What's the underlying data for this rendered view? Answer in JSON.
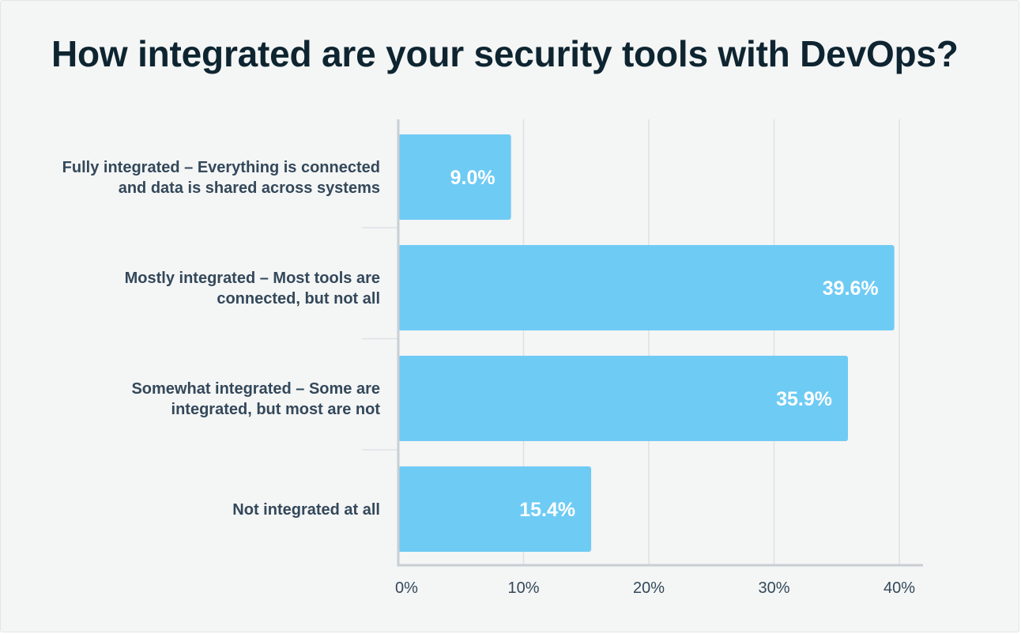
{
  "chart_data": {
    "type": "bar",
    "orientation": "horizontal",
    "title": "How integrated are your security tools with DevOps?",
    "categories": [
      [
        "Fully integrated – Everything is connected",
        "and data is shared across systems"
      ],
      [
        "Mostly integrated – Most tools are",
        "connected, but not all"
      ],
      [
        "Somewhat integrated – Some are",
        "integrated, but most are not"
      ],
      [
        "Not integrated at all"
      ]
    ],
    "values": [
      9.0,
      39.6,
      35.9,
      15.4
    ],
    "value_labels": [
      "9.0%",
      "39.6%",
      "35.9%",
      "15.4%"
    ],
    "xlim": [
      0,
      41.3
    ],
    "x_ticks": [
      0,
      10,
      20,
      30,
      40
    ],
    "x_tick_labels": [
      "0%",
      "10%",
      "20%",
      "30%",
      "40%"
    ],
    "xlabel": "",
    "ylabel": "",
    "grid": true,
    "legend": "none",
    "colors": {
      "bar": "#6ecbf4",
      "value_text": "#ffffff",
      "label_text": "#33485a",
      "title_text": "#0e2531",
      "gridline": "#dde2e5",
      "axis": "#c8cfd4",
      "background": "#f4f5f5"
    }
  }
}
